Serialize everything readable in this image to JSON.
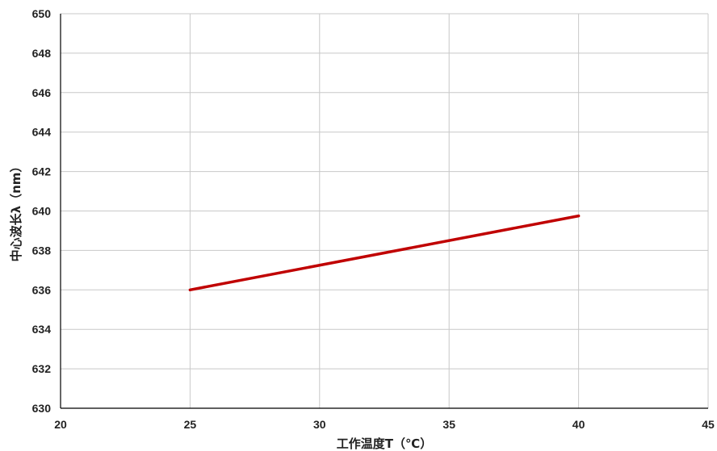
{
  "chart_data": {
    "type": "line",
    "title": "",
    "xlabel": "工作温度T（℃）",
    "ylabel": "中心波长λ（nm）",
    "xlim": [
      20,
      45
    ],
    "ylim": [
      630,
      650
    ],
    "xticks": [
      20,
      25,
      30,
      35,
      40,
      45
    ],
    "yticks": [
      630,
      632,
      634,
      636,
      638,
      640,
      642,
      644,
      646,
      648,
      650
    ],
    "grid": true,
    "legend": "none",
    "series": [
      {
        "color": "#c00000",
        "x": [
          25,
          40
        ],
        "y": [
          636.0,
          639.75
        ]
      }
    ]
  }
}
